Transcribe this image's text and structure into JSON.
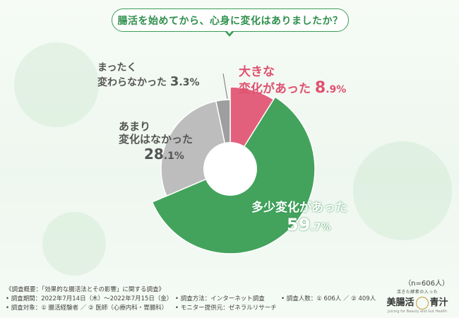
{
  "title": "腸活を始めてから、心身に変化はありましたか？",
  "n_note": "（n=606人）",
  "chart_data": {
    "type": "pie",
    "donut": true,
    "start": "12 o'clock",
    "direction": "clockwise",
    "slices": [
      {
        "label_lines": [
          "大きな",
          "変化があった"
        ],
        "value": 8.9,
        "pct_int": "8",
        "pct_dec": ".9%",
        "color": "#e3607c"
      },
      {
        "label_lines": [
          "多少変化があった"
        ],
        "value": 59.7,
        "pct_int": "59",
        "pct_dec": ".7%",
        "color": "#43a35c"
      },
      {
        "label_lines": [
          "あまり",
          "変化はなかった"
        ],
        "value": 28.1,
        "pct_int": "28",
        "pct_dec": ".1%",
        "color": "#bdbdbd"
      },
      {
        "label_lines": [
          "まったく",
          "変わらなかった"
        ],
        "value": 3.3,
        "pct_int": "3",
        "pct_dec": ".3%",
        "color": "#9e9e9e"
      }
    ]
  },
  "footer": {
    "overview": "《調査概要：「効果的な腸活法とその影響」に関する調査》",
    "period": "• 調査期間：2022年7月14日（木）〜2022年7月15日（金）",
    "target": "• 調査対象：① 腸活経験者 ／ ② 医師（心療内科・胃腸科）",
    "method": "• 調査方法：インターネット調査",
    "provider": "• モニター提供元：ゼネラルリサーチ",
    "count": "• 調査人数：① 606人 ／ ② 409人"
  },
  "logo": {
    "sub": "活きた酵素の入った",
    "left": "美腸活",
    "right": "青汁",
    "tag": "Juicing for Beauty and Gut Health"
  }
}
